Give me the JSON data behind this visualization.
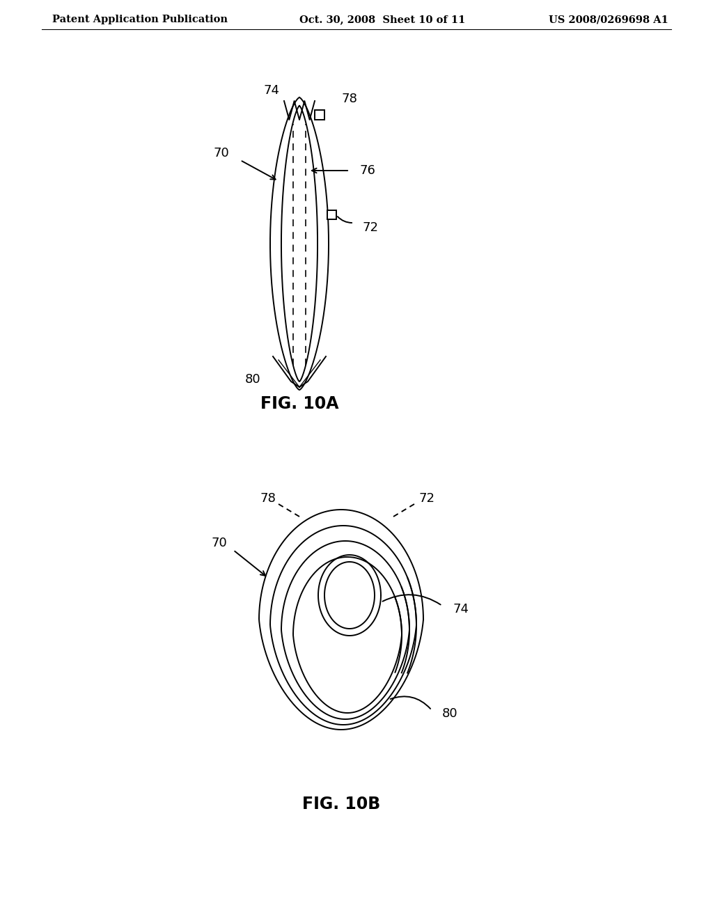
{
  "header_left": "Patent Application Publication",
  "header_mid": "Oct. 30, 2008  Sheet 10 of 11",
  "header_right": "US 2008/0269698 A1",
  "fig10a_label": "FIG. 10A",
  "fig10b_label": "FIG. 10B",
  "bg_color": "#ffffff",
  "line_color": "#000000",
  "font_size_header": 10.5,
  "font_size_fig": 17,
  "font_size_ref": 13
}
